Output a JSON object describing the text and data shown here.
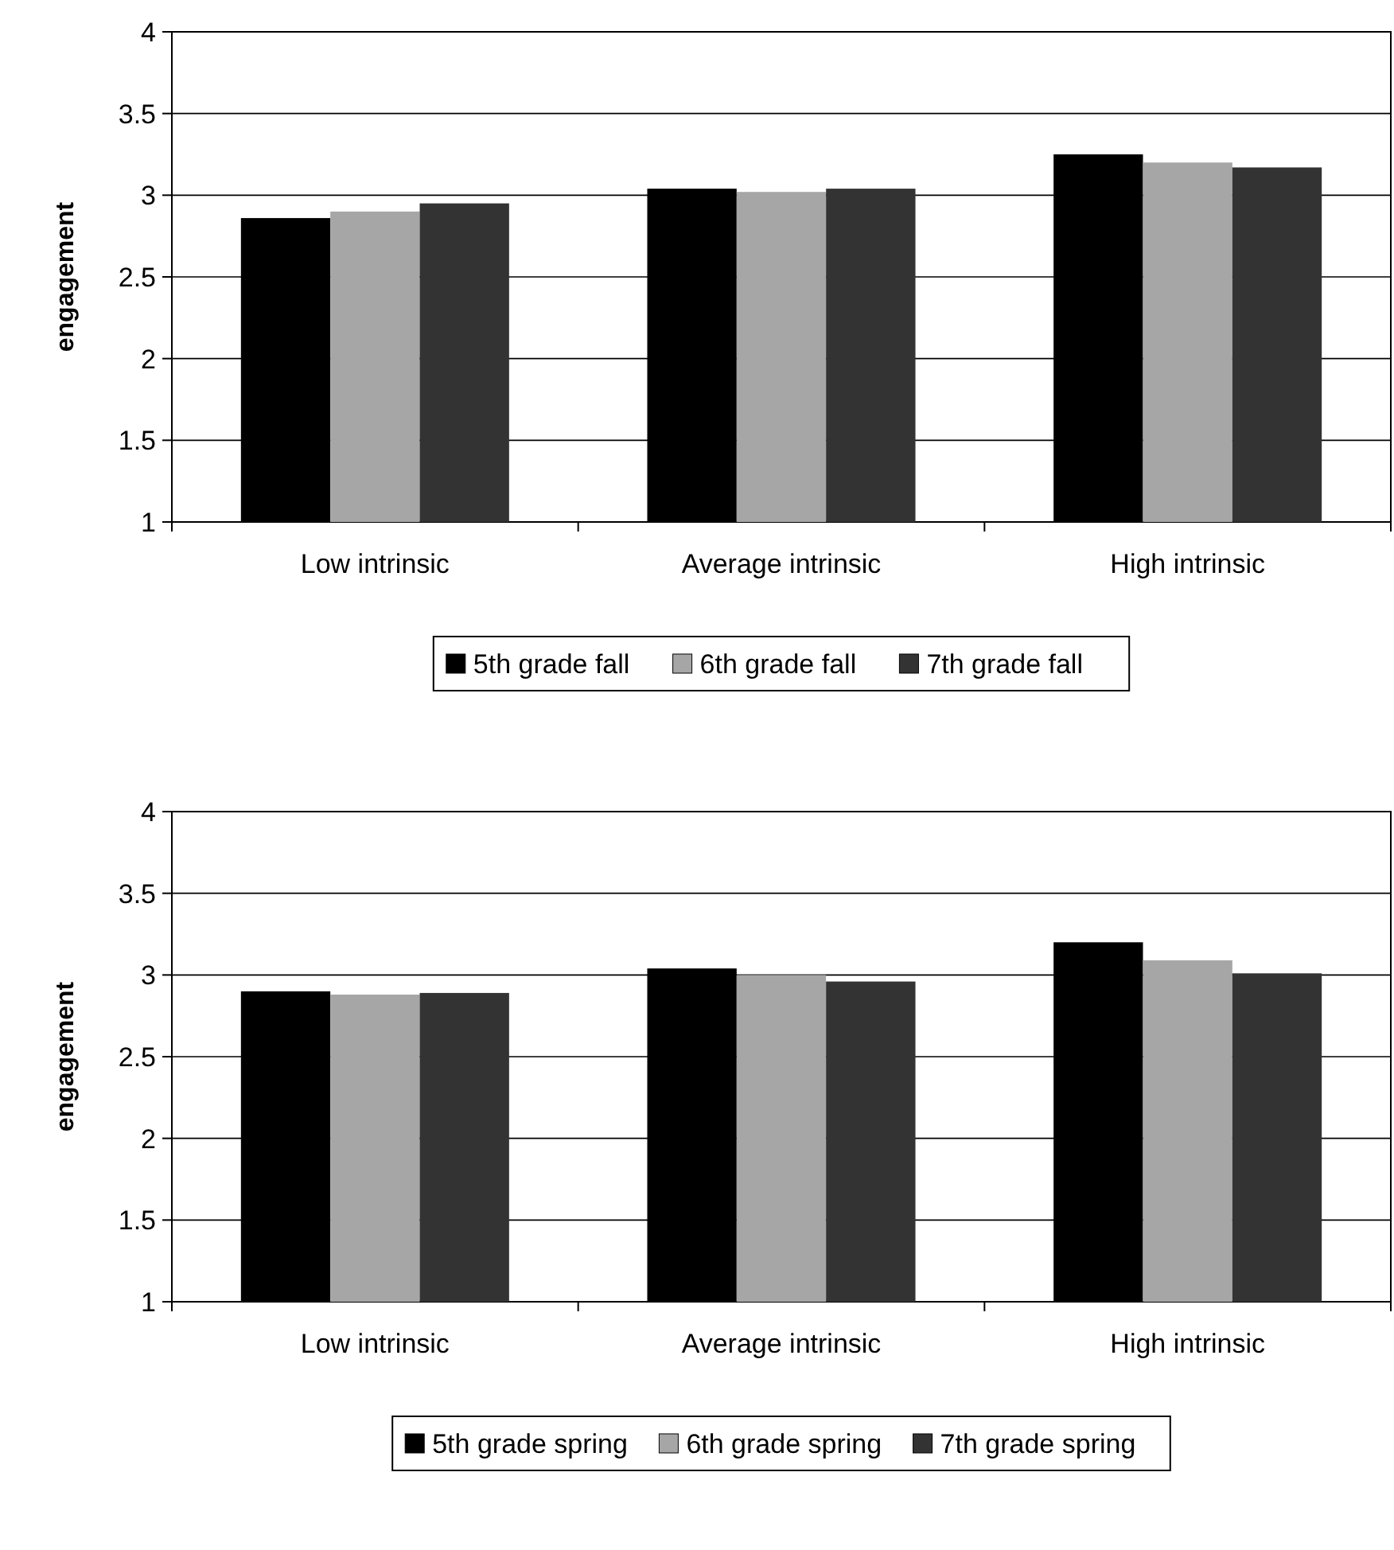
{
  "chart_data": [
    {
      "type": "bar",
      "ylabel": "engagement",
      "categories": [
        "Low intrinsic",
        "Average intrinsic",
        "High intrinsic"
      ],
      "ylim": [
        1,
        4
      ],
      "yticks": [
        1,
        1.5,
        2,
        2.5,
        3,
        3.5,
        4
      ],
      "grid": "y",
      "legend": "bottom",
      "series": [
        {
          "name": "5th grade fall",
          "color": "#000000",
          "values": [
            2.86,
            3.04,
            3.25
          ]
        },
        {
          "name": "6th grade fall",
          "color": "#a6a6a6",
          "values": [
            2.9,
            3.02,
            3.2
          ]
        },
        {
          "name": "7th grade fall",
          "color": "#333333",
          "values": [
            2.95,
            3.04,
            3.17
          ]
        }
      ]
    },
    {
      "type": "bar",
      "ylabel": "engagement",
      "categories": [
        "Low intrinsic",
        "Average intrinsic",
        "High intrinsic"
      ],
      "ylim": [
        1,
        4
      ],
      "yticks": [
        1,
        1.5,
        2,
        2.5,
        3,
        3.5,
        4
      ],
      "grid": "y",
      "legend": "bottom",
      "series": [
        {
          "name": "5th grade spring",
          "color": "#000000",
          "values": [
            2.9,
            3.04,
            3.2
          ]
        },
        {
          "name": "6th grade spring",
          "color": "#a6a6a6",
          "values": [
            2.88,
            3.0,
            3.09
          ]
        },
        {
          "name": "7th grade spring",
          "color": "#333333",
          "values": [
            2.89,
            2.96,
            3.01
          ]
        }
      ]
    }
  ]
}
